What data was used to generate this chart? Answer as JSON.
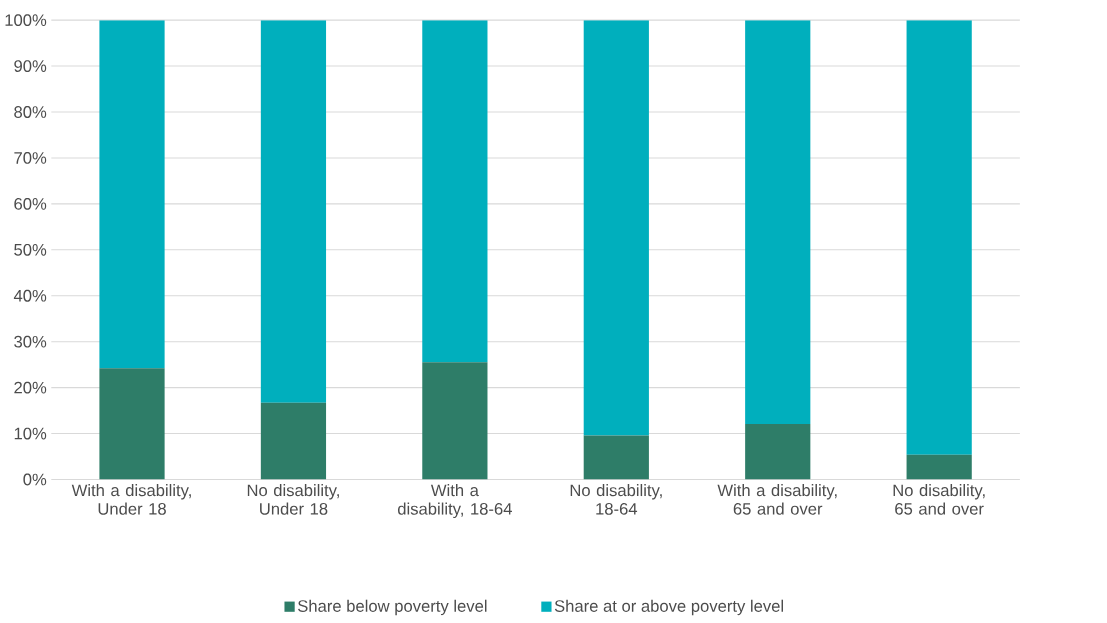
{
  "chart_data": {
    "type": "bar",
    "stacked": true,
    "categories": [
      "With a disability, Under 18",
      "No disability, Under 18",
      "With a disability, 18-64",
      "No disability, 18-64",
      "With a disability, 65 and over",
      "No disability, 65 and over"
    ],
    "series": [
      {
        "name": "Share below poverty level",
        "color": "#2e7d68",
        "values": [
          24.2,
          16.7,
          25.5,
          9.6,
          12.1,
          5.4
        ]
      },
      {
        "name": "Share at or above poverty level",
        "color": "#00afbd",
        "values": [
          75.8,
          83.3,
          74.5,
          90.4,
          87.9,
          94.6
        ]
      }
    ],
    "ylim": [
      0,
      100
    ],
    "yticks": [
      {
        "value": 0,
        "label": "0%"
      },
      {
        "value": 10,
        "label": "10%"
      },
      {
        "value": 20,
        "label": "20%"
      },
      {
        "value": 30,
        "label": "30%"
      },
      {
        "value": 40,
        "label": "40%"
      },
      {
        "value": 50,
        "label": "50%"
      },
      {
        "value": 60,
        "label": "60%"
      },
      {
        "value": 70,
        "label": "70%"
      },
      {
        "value": 80,
        "label": "80%"
      },
      {
        "value": 90,
        "label": "90%"
      },
      {
        "value": 100,
        "label": "100%"
      }
    ],
    "grid": "y",
    "legend": "bottom"
  }
}
